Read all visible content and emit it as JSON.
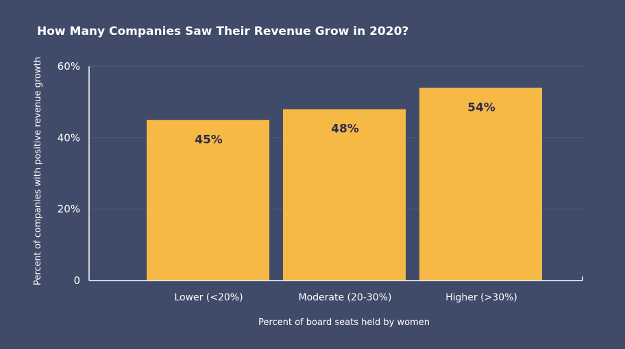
{
  "chart_data": {
    "type": "bar",
    "title": "How Many Companies Saw Their Revenue Grow in 2020?",
    "categories": [
      "Lower (<20%)",
      "Moderate (20-30%)",
      "Higher (>30%)"
    ],
    "values": [
      45,
      48,
      54
    ],
    "data_labels": [
      "45%",
      "48%",
      "54%"
    ],
    "xlabel": "Percent of board seats held by women",
    "ylabel": "Percent of companies with positive revenue growth",
    "ylim": [
      0,
      60
    ],
    "yticks": [
      0,
      20,
      40,
      60
    ],
    "ytick_labels": [
      "0",
      "20%",
      "40%",
      "60%"
    ],
    "grid": true,
    "bar_color": "#f6b946",
    "background_color": "#404b69",
    "grid_color": "#55607c",
    "label_color": "#2e2a4a"
  }
}
